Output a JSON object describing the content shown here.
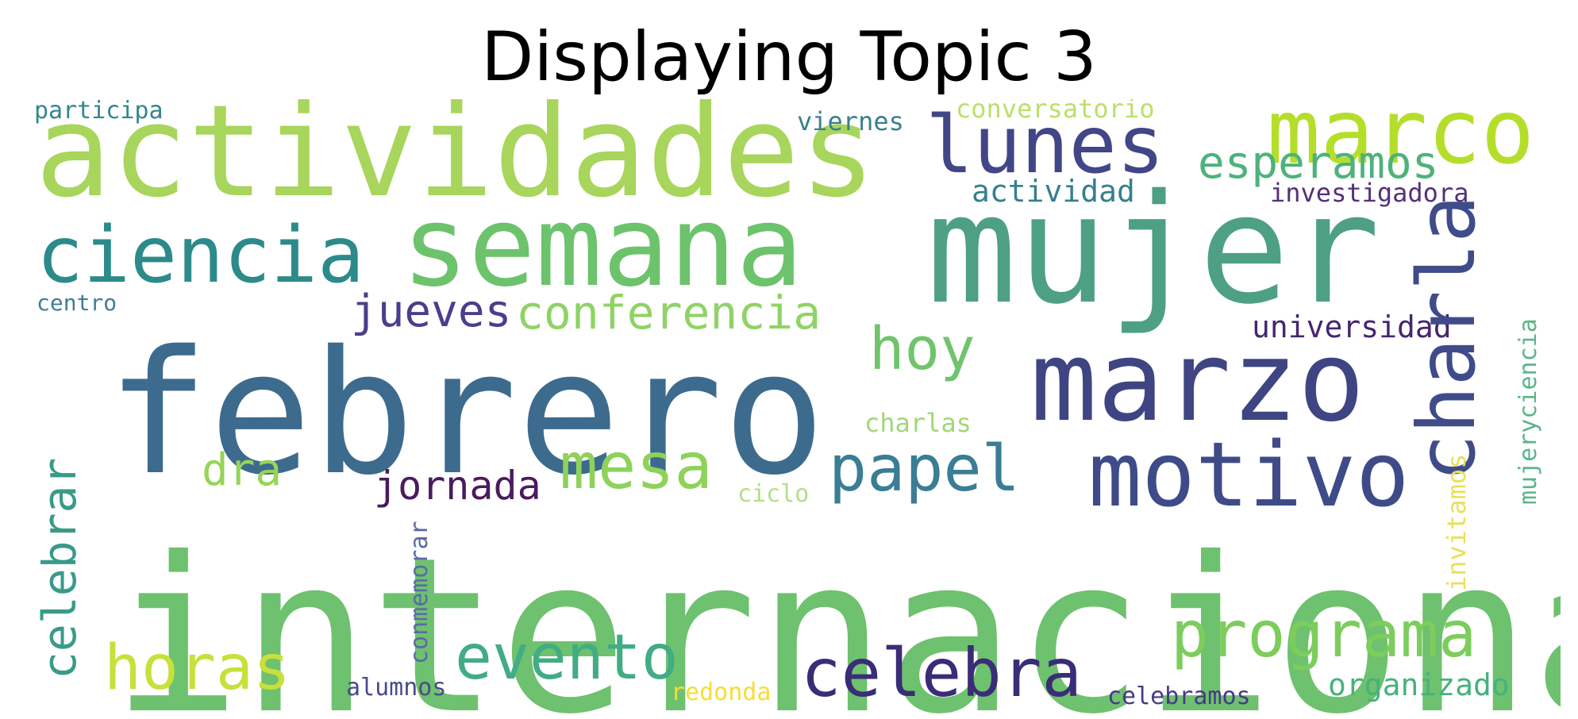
{
  "title": "Displaying Topic 3",
  "words": {
    "internacional": {
      "text": "internacional",
      "color": "#6ec16e"
    },
    "febrero": {
      "text": "febrero",
      "color": "#3c6b8e"
    },
    "mujer": {
      "text": "mujer",
      "color": "#4ea084"
    },
    "actividades": {
      "text": "actividades",
      "color": "#a8d55b"
    },
    "semana": {
      "text": "semana",
      "color": "#6cc36c"
    },
    "marzo": {
      "text": "marzo",
      "color": "#3f4583"
    },
    "motivo": {
      "text": "motivo",
      "color": "#3e4b88"
    },
    "marco": {
      "text": "marco",
      "color": "#b5de2b"
    },
    "lunes": {
      "text": "lunes",
      "color": "#414687"
    },
    "ciencia": {
      "text": "ciencia",
      "color": "#2c8b8a"
    },
    "charla": {
      "text": "charla",
      "color": "#3f4c89"
    },
    "celebra": {
      "text": "celebra",
      "color": "#3a2c77"
    },
    "programa": {
      "text": "programa",
      "color": "#7ccd5c"
    },
    "papel": {
      "text": "papel",
      "color": "#3a7d95"
    },
    "mesa": {
      "text": "mesa",
      "color": "#8ed25a"
    },
    "horas": {
      "text": "horas",
      "color": "#c8e03b"
    },
    "evento": {
      "text": "evento",
      "color": "#42ac84"
    },
    "hoy": {
      "text": "hoy",
      "color": "#70c46c"
    },
    "conferencia": {
      "text": "conferencia",
      "color": "#8fd366"
    },
    "esperamos": {
      "text": "esperamos",
      "color": "#4db27b"
    },
    "jueves": {
      "text": "jueves",
      "color": "#4a3f8c"
    },
    "dra": {
      "text": "dra",
      "color": "#97d45a"
    },
    "jornada": {
      "text": "jornada",
      "color": "#4a1b5f"
    },
    "actividad": {
      "text": "actividad",
      "color": "#357f8d"
    },
    "universidad": {
      "text": "universidad",
      "color": "#452670"
    },
    "organizado": {
      "text": "organizado",
      "color": "#46b27b"
    },
    "investigadora": {
      "text": "investigadora",
      "color": "#55307a"
    },
    "conversatorio": {
      "text": "conversatorio",
      "color": "#bbe06a"
    },
    "viernes": {
      "text": "viernes",
      "color": "#3b7f8d"
    },
    "participa": {
      "text": "participa",
      "color": "#33868c"
    },
    "charlas": {
      "text": "charlas",
      "color": "#a1d778"
    },
    "celebramos": {
      "text": "celebramos",
      "color": "#443b84"
    },
    "redonda": {
      "text": "redonda",
      "color": "#f5de38"
    },
    "alumnos": {
      "text": "alumnos",
      "color": "#4b4a8a"
    },
    "ciclo": {
      "text": "ciclo",
      "color": "#b4de8a"
    },
    "centro": {
      "text": "centro",
      "color": "#3f7e93"
    },
    "celebrar": {
      "text": "celebrar",
      "color": "#3a9a8a"
    },
    "invitamos": {
      "text": "invitamos",
      "color": "#e8e15a"
    },
    "mujeryciencia": {
      "text": "mujeryciencia",
      "color": "#5cb588"
    },
    "conmemorar": {
      "text": "conmemorar",
      "color": "#5a6aa6"
    }
  }
}
